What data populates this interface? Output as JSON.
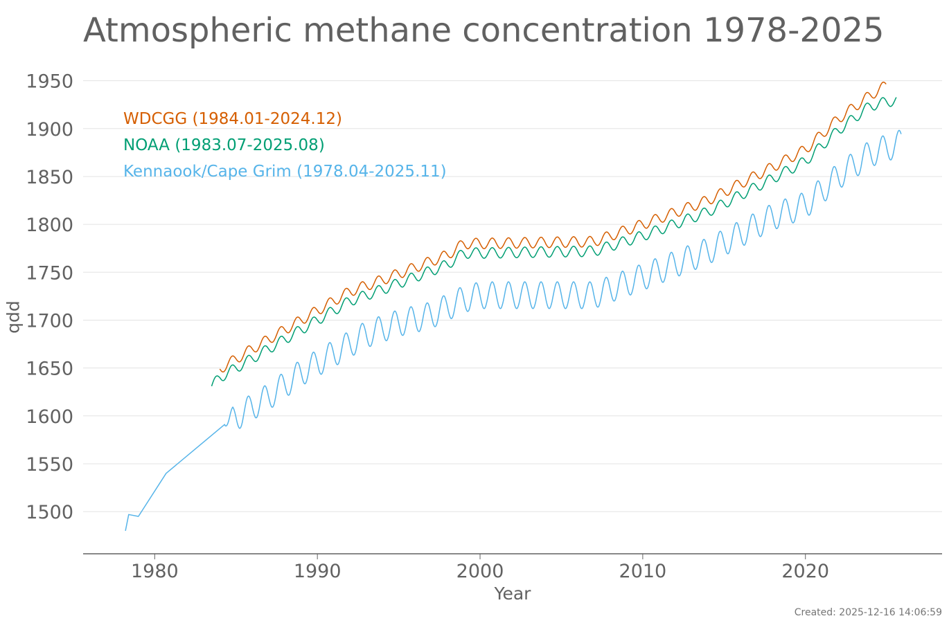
{
  "chart_data": {
    "type": "line",
    "title": "Atmospheric methane concentration 1978-2025",
    "xlabel": "Year",
    "ylabel": "ppb",
    "xlim": [
      1975.6,
      2028.4
    ],
    "ylim": [
      1456,
      1962
    ],
    "x_ticks": [
      "1980",
      "1990",
      "2000",
      "2010",
      "2020"
    ],
    "y_ticks": [
      "1500",
      "1550",
      "1600",
      "1650",
      "1700",
      "1750",
      "1800",
      "1850",
      "1900",
      "1950"
    ],
    "grid": true,
    "legend_position": "top-left",
    "series": [
      {
        "name": "WDCGG (1984.01-2024.12)",
        "color": "#d55e00",
        "kind": "monthly-seasonal",
        "start": 1984.0,
        "end": 2024.96,
        "amplitude": 5.5,
        "trend": [
          [
            1984.0,
            1649
          ],
          [
            1986.0,
            1670
          ],
          [
            1988.0,
            1690
          ],
          [
            1990.0,
            1710
          ],
          [
            1992.0,
            1730
          ],
          [
            1994.0,
            1742
          ],
          [
            1996.0,
            1755
          ],
          [
            1998.0,
            1768
          ],
          [
            1999.0,
            1780
          ],
          [
            2000.0,
            1780
          ],
          [
            2007.0,
            1782
          ],
          [
            2010.0,
            1800
          ],
          [
            2014.0,
            1825
          ],
          [
            2018.0,
            1860
          ],
          [
            2020.0,
            1878
          ],
          [
            2022.0,
            1910
          ],
          [
            2024.0,
            1935
          ],
          [
            2024.96,
            1945
          ]
        ]
      },
      {
        "name": "NOAA (1983.07-2025.08)",
        "color": "#009e73",
        "kind": "monthly-seasonal",
        "start": 1983.5,
        "end": 2025.6,
        "amplitude": 5.5,
        "trend": [
          [
            1983.5,
            1631
          ],
          [
            1984.0,
            1640
          ],
          [
            1986.0,
            1660
          ],
          [
            1988.0,
            1680
          ],
          [
            1990.0,
            1700
          ],
          [
            1992.0,
            1720
          ],
          [
            1994.0,
            1732
          ],
          [
            1996.0,
            1745
          ],
          [
            1998.0,
            1758
          ],
          [
            1999.0,
            1770
          ],
          [
            2000.0,
            1770
          ],
          [
            2007.0,
            1772
          ],
          [
            2010.0,
            1788
          ],
          [
            2014.0,
            1813
          ],
          [
            2018.0,
            1848
          ],
          [
            2020.0,
            1866
          ],
          [
            2022.0,
            1898
          ],
          [
            2024.0,
            1924
          ],
          [
            2025.6,
            1930
          ]
        ]
      },
      {
        "name": "Kennaook/Cape Grim (1978.04-2025.11)",
        "color": "#56b4e9",
        "kind": "sparse-then-seasonal",
        "points": [
          [
            1978.2,
            1480
          ],
          [
            1978.4,
            1497
          ],
          [
            1979.0,
            1495
          ],
          [
            1980.7,
            1540
          ],
          [
            1984.3,
            1591
          ]
        ],
        "seasonal_start": 1984.3,
        "end": 2025.9,
        "amplitude": 14,
        "trend": [
          [
            1984.3,
            1590
          ],
          [
            1985.5,
            1604
          ],
          [
            1987.0,
            1620
          ],
          [
            1989.0,
            1645
          ],
          [
            1991.0,
            1665
          ],
          [
            1993.0,
            1685
          ],
          [
            1995.0,
            1697
          ],
          [
            1997.0,
            1705
          ],
          [
            1999.0,
            1722
          ],
          [
            2000.0,
            1726
          ],
          [
            2007.0,
            1726
          ],
          [
            2010.0,
            1745
          ],
          [
            2014.0,
            1772
          ],
          [
            2018.0,
            1808
          ],
          [
            2020.0,
            1820
          ],
          [
            2022.0,
            1850
          ],
          [
            2024.0,
            1874
          ],
          [
            2025.9,
            1885
          ]
        ]
      }
    ]
  },
  "created": "Created: 2025-12-16 14:06:59"
}
